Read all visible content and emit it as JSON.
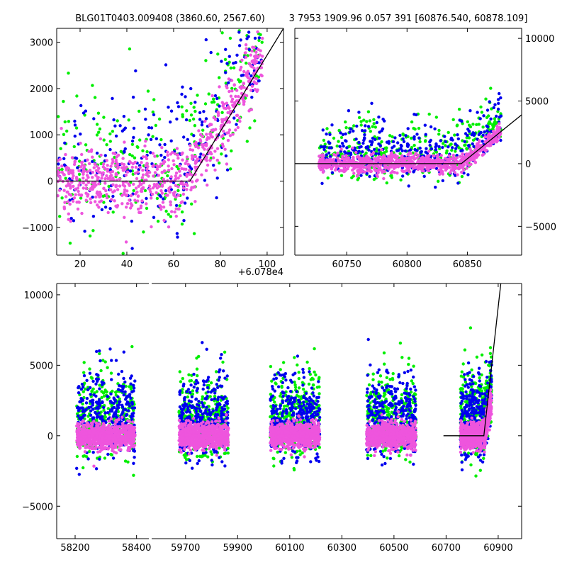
{
  "chart_data": [
    {
      "type": "scatter",
      "panel": "top-left",
      "title": "BLG01T0403.009408 (3860.60, 2567.60)",
      "xlim": [
        10,
        107
      ],
      "ylim": [
        -1600,
        3300
      ],
      "xticks": [
        "20",
        "40",
        "60",
        "80",
        "100"
      ],
      "xtick_values": [
        20,
        40,
        60,
        80,
        100
      ],
      "yticks": [
        "−1000",
        "0",
        "1000",
        "2000",
        "3000"
      ],
      "ytick_values": [
        -1000,
        0,
        1000,
        2000,
        3000
      ],
      "x_offset_label": "+6.078e4",
      "model_line": {
        "x": [
          10,
          67,
          107
        ],
        "y": [
          0,
          0,
          3300
        ]
      }
    },
    {
      "type": "scatter",
      "panel": "top-right",
      "title": "3 7953 1909.96 0.057 391 [60876.540, 60878.109]",
      "xlim": [
        60707,
        60895
      ],
      "ylim": [
        -7300,
        10800
      ],
      "xticks": [
        "60750",
        "60800",
        "60850"
      ],
      "xtick_values": [
        60750,
        60800,
        60850
      ],
      "yticks": [
        "−5000",
        "0",
        "5000",
        "10000"
      ],
      "ytick_values": [
        -5000,
        0,
        5000,
        10000
      ],
      "model_line": {
        "x": [
          60707,
          60845,
          60895
        ],
        "y": [
          0,
          0,
          3900
        ]
      }
    },
    {
      "type": "scatter",
      "panel": "bottom",
      "broken_axis": true,
      "segments": [
        {
          "xlim": [
            58140,
            58440
          ],
          "xticks": [
            "58200",
            "58400"
          ],
          "xtick_values": [
            58200,
            58400
          ]
        },
        {
          "xlim": [
            59570,
            60990
          ],
          "xticks": [
            "59700",
            "59900",
            "60100",
            "60300",
            "60500",
            "60700",
            "60900"
          ],
          "xtick_values": [
            59700,
            59900,
            60100,
            60300,
            60500,
            60700,
            60900
          ]
        }
      ],
      "ylim": [
        -7300,
        10800
      ],
      "yticks": [
        "−5000",
        "0",
        "5000",
        "10000"
      ],
      "ytick_values": [
        -5000,
        0,
        5000,
        10000
      ],
      "model_line": {
        "x": [
          60690,
          60845,
          60910
        ],
        "y": [
          0,
          0,
          10800
        ]
      }
    }
  ],
  "series": [
    {
      "name": "green",
      "color": "#00ee00"
    },
    {
      "name": "blue",
      "color": "#0000ee"
    },
    {
      "name": "magenta",
      "color": "#ee55dd"
    }
  ],
  "seasons": [
    {
      "center": 58300,
      "halfwidth": 95
    },
    {
      "center": 59770,
      "halfwidth": 95
    },
    {
      "center": 60120,
      "halfwidth": 95
    },
    {
      "center": 60490,
      "halfwidth": 95
    },
    {
      "center": 60815,
      "halfwidth": 60
    }
  ]
}
